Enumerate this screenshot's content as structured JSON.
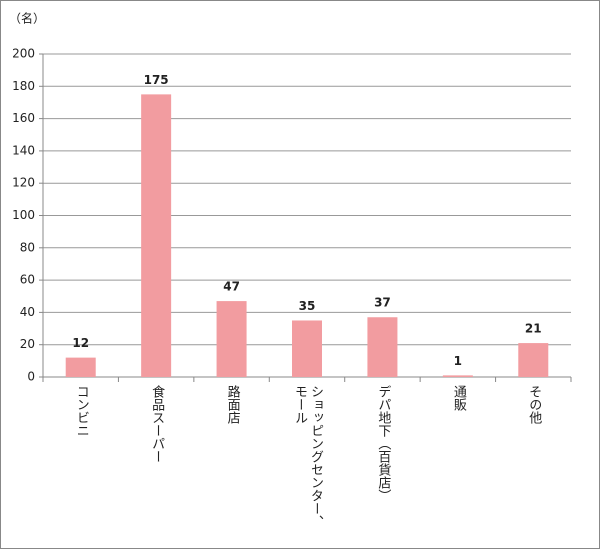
{
  "chart_data": {
    "type": "bar",
    "unit_label": "（名）",
    "categories": [
      "コンビニ",
      "食品スーパー",
      "路面店",
      "ショッピングセンター、モール",
      "デパ地下（百貨店）",
      "通販",
      "その他"
    ],
    "values": [
      12,
      175,
      47,
      35,
      37,
      1,
      21
    ],
    "color": "#f29ca0",
    "ylim": [
      0,
      200
    ],
    "yticks": [
      0,
      20,
      40,
      60,
      80,
      100,
      120,
      140,
      160,
      180,
      200
    ],
    "grid": true
  }
}
